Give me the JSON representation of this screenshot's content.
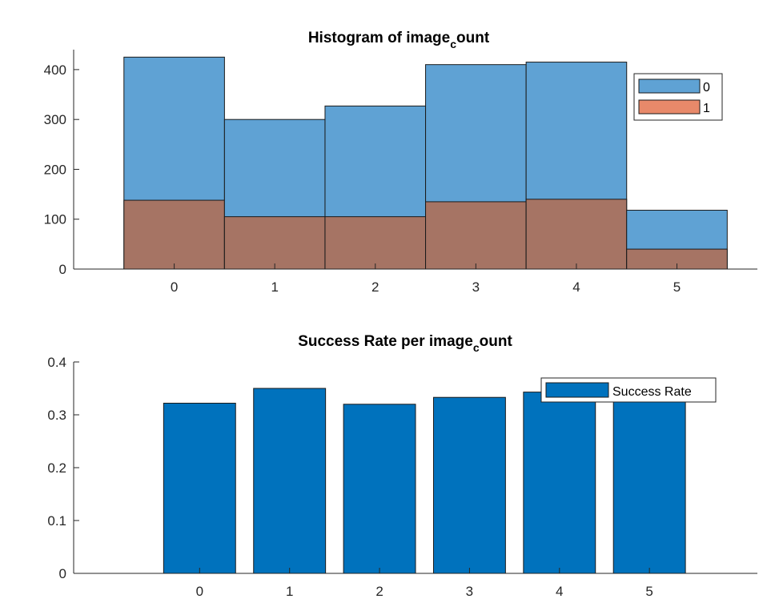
{
  "chart_data": [
    {
      "type": "bar",
      "title_main": "Histogram of image",
      "title_sub": "c",
      "title_rest": "ount",
      "categories": [
        "0",
        "1",
        "2",
        "3",
        "4",
        "5"
      ],
      "ylim": [
        0,
        440
      ],
      "yticks": [
        "0",
        "100",
        "200",
        "300",
        "400"
      ],
      "grid": false,
      "legend_position": "top-right",
      "series": [
        {
          "name": "0",
          "values": [
            425,
            300,
            327,
            410,
            415,
            118
          ],
          "color": "#5fa2d4"
        },
        {
          "name": "1",
          "values": [
            138,
            105,
            105,
            135,
            140,
            40
          ],
          "color": "#e8896a"
        }
      ],
      "overlap_color": "#a67464"
    },
    {
      "type": "bar",
      "title_main": "Success Rate per image",
      "title_sub": "c",
      "title_rest": "ount",
      "categories": [
        "0",
        "1",
        "2",
        "3",
        "4",
        "5"
      ],
      "ylim": [
        0,
        0.4
      ],
      "yticks": [
        "0",
        "0.1",
        "0.2",
        "0.3",
        "0.4"
      ],
      "grid": false,
      "legend_position": "top-right",
      "series": [
        {
          "name": "Success Rate",
          "values": [
            0.322,
            0.35,
            0.32,
            0.333,
            0.343,
            0.33
          ],
          "color": "#0072bd"
        }
      ]
    }
  ]
}
